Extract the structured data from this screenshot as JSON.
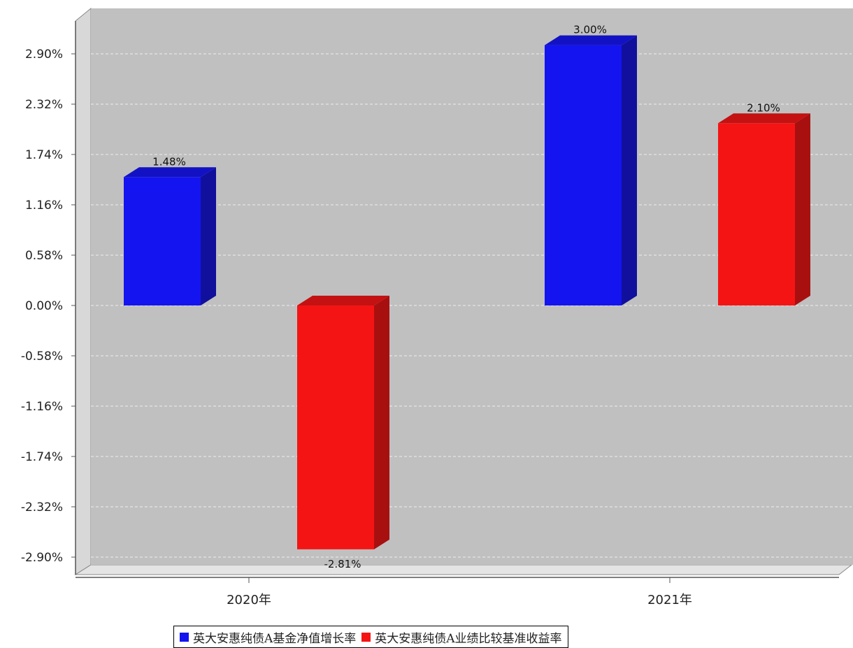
{
  "chart_data": {
    "type": "bar",
    "categories": [
      "2020年",
      "2021年"
    ],
    "series": [
      {
        "name": "英大安惠纯债A基金净值增长率",
        "values": [
          1.48,
          3.0
        ],
        "labels": [
          "1.48%",
          "3.00%"
        ],
        "color": "#1414f0",
        "side_color": "#10109c",
        "top_color": "#1212c4"
      },
      {
        "name": "英大安惠纯债A业绩比较基准收益率",
        "values": [
          -2.81,
          2.1
        ],
        "labels": [
          "-2.81%",
          "2.10%"
        ],
        "color": "#f51414",
        "side_color": "#a81010",
        "top_color": "#c41212"
      }
    ],
    "y_ticks": [
      2.9,
      2.32,
      1.74,
      1.16,
      0.58,
      0.0,
      -0.58,
      -1.16,
      -1.74,
      -2.32,
      -2.9
    ],
    "y_tick_labels": [
      "2.90%",
      "2.32%",
      "1.74%",
      "1.16%",
      "0.58%",
      "0.00%",
      "-0.58%",
      "-1.16%",
      "-1.74%",
      "-2.32%",
      "-2.90%"
    ],
    "ylim": [
      -3.0,
      3.0
    ],
    "grid": true,
    "legend_position": "bottom",
    "plot_background": "#c0c0c0"
  }
}
